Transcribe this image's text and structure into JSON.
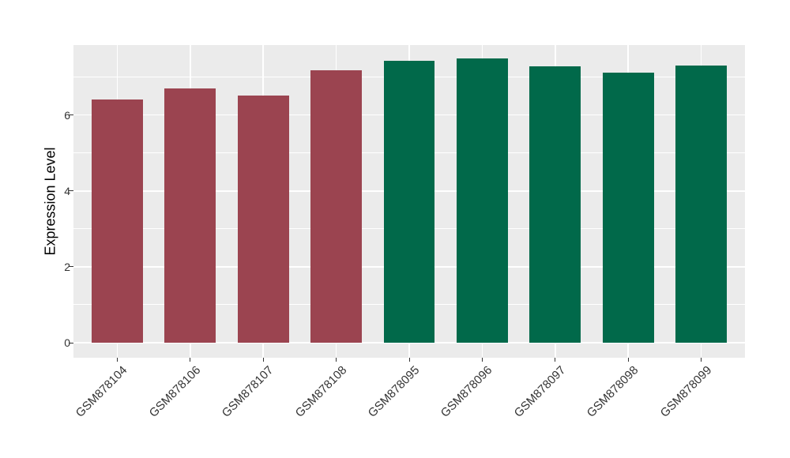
{
  "chart_data": {
    "type": "bar",
    "title": "",
    "xlabel": "",
    "ylabel": "Expression Level",
    "categories": [
      "GSM878104",
      "GSM878106",
      "GSM878107",
      "GSM878108",
      "GSM878095",
      "GSM878096",
      "GSM878097",
      "GSM878098",
      "GSM878099"
    ],
    "values": [
      6.42,
      6.71,
      6.52,
      7.17,
      7.44,
      7.49,
      7.28,
      7.12,
      7.3
    ],
    "groups": [
      "group1",
      "group1",
      "group1",
      "group1",
      "group2",
      "group2",
      "group2",
      "group2",
      "group2"
    ],
    "group_colors": {
      "group1": "#9B4450",
      "group2": "#01694A"
    },
    "ylim": [
      0,
      7.85
    ],
    "yticks": [
      0,
      2,
      4,
      6
    ],
    "yticks_minor": [
      1,
      3,
      5,
      7
    ],
    "grid": "on",
    "legend": "none",
    "panel_background": "#EBEBEB",
    "grid_color": "#FFFFFF",
    "tick_color": "#333333",
    "axis_text_color": "#333333",
    "bar_width_fraction": 0.7,
    "x_label_angle_deg": 45
  }
}
